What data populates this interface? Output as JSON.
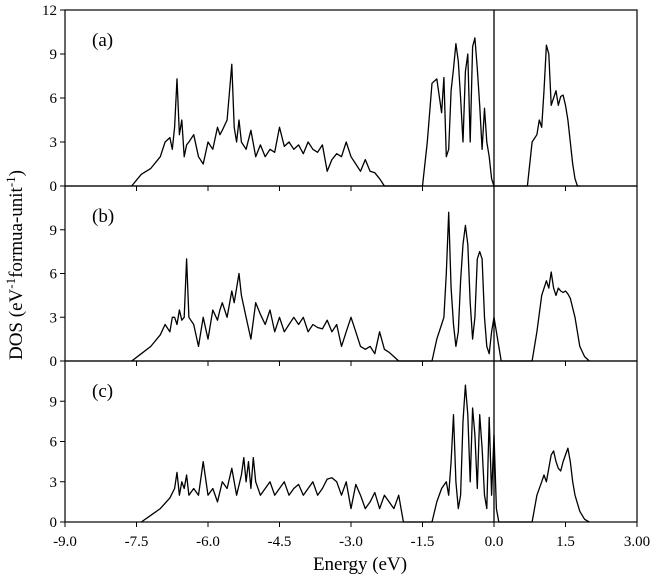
{
  "chart_data": {
    "type": "line",
    "figure": {
      "xlabel": "Energy (eV)",
      "ylabel_main": "DOS (eV",
      "ylabel_sup1": "-1",
      "ylabel_mid": "formua-unit",
      "ylabel_sup2": "-1",
      "ylabel_end": ")",
      "xlim": [
        -9.0,
        3.0
      ],
      "xticks": [
        -9.0,
        -7.5,
        -6.0,
        -4.5,
        -3.0,
        -1.5,
        0.0,
        1.5,
        3.0
      ],
      "xtick_labels": [
        "-9.0",
        "-7.5",
        "-6.0",
        "-4.5",
        "-3.0",
        "-1.5",
        "0.0",
        "1.5",
        "3.00"
      ],
      "fermi_level": 0.0,
      "grid": false,
      "legend": "none"
    },
    "panels": [
      {
        "label": "(a)",
        "ylim": [
          0,
          12
        ],
        "yticks": [
          0,
          3,
          6,
          9,
          12
        ],
        "ytick_labels": [
          "0",
          "3",
          "6",
          "9",
          "12"
        ],
        "x": [
          -7.6,
          -7.4,
          -7.2,
          -7.0,
          -6.9,
          -6.8,
          -6.75,
          -6.7,
          -6.65,
          -6.6,
          -6.55,
          -6.5,
          -6.45,
          -6.4,
          -6.3,
          -6.2,
          -6.1,
          -6.0,
          -5.9,
          -5.8,
          -5.75,
          -5.7,
          -5.6,
          -5.5,
          -5.45,
          -5.4,
          -5.35,
          -5.3,
          -5.2,
          -5.1,
          -5.0,
          -4.9,
          -4.8,
          -4.7,
          -4.6,
          -4.5,
          -4.4,
          -4.3,
          -4.2,
          -4.1,
          -4.0,
          -3.9,
          -3.8,
          -3.7,
          -3.6,
          -3.5,
          -3.4,
          -3.3,
          -3.2,
          -3.1,
          -3.0,
          -2.9,
          -2.8,
          -2.7,
          -2.6,
          -2.5,
          -2.4,
          -2.3,
          -1.5,
          -1.4,
          -1.3,
          -1.2,
          -1.1,
          -1.05,
          -1.0,
          -0.95,
          -0.9,
          -0.85,
          -0.8,
          -0.75,
          -0.7,
          -0.65,
          -0.6,
          -0.55,
          -0.5,
          -0.45,
          -0.4,
          -0.35,
          -0.3,
          -0.25,
          -0.2,
          -0.15,
          -0.1,
          -0.05,
          0.0,
          0.7,
          0.8,
          0.9,
          0.95,
          1.0,
          1.05,
          1.1,
          1.15,
          1.2,
          1.25,
          1.3,
          1.35,
          1.4,
          1.45,
          1.5,
          1.55,
          1.6,
          1.65,
          1.7,
          1.75,
          1.8
        ],
        "y": [
          0,
          0.8,
          1.2,
          2.0,
          3.0,
          3.3,
          2.5,
          4.0,
          7.3,
          3.5,
          4.5,
          2.0,
          2.8,
          3.0,
          3.5,
          2.0,
          1.5,
          3.0,
          2.5,
          4.0,
          3.5,
          3.8,
          4.5,
          8.3,
          4.0,
          3.0,
          4.5,
          3.0,
          2.5,
          3.8,
          2.0,
          2.8,
          2.0,
          2.5,
          2.3,
          4.0,
          2.7,
          3.0,
          2.5,
          2.8,
          2.2,
          3.0,
          2.5,
          2.3,
          2.8,
          1.0,
          1.8,
          2.2,
          2.0,
          3.0,
          2.0,
          1.5,
          1.0,
          1.8,
          1.0,
          0.9,
          0.5,
          0,
          0,
          3.0,
          7.0,
          7.3,
          5.0,
          7.4,
          2.0,
          2.5,
          6.5,
          8.0,
          9.7,
          8.5,
          6.0,
          3.0,
          7.8,
          9.0,
          3.0,
          9.5,
          10.1,
          8.0,
          5.5,
          2.5,
          5.3,
          3.0,
          2.0,
          0.5,
          0,
          0,
          3.0,
          3.5,
          4.5,
          4.0,
          6.5,
          9.6,
          9.0,
          5.5,
          6.0,
          6.5,
          5.5,
          6.1,
          6.2,
          5.5,
          4.5,
          3.0,
          1.5,
          0.5,
          0,
          0
        ]
      },
      {
        "label": "(b)",
        "ylim": [
          0,
          12
        ],
        "yticks": [
          0,
          3,
          6,
          9
        ],
        "ytick_labels": [
          "0",
          "3",
          "6",
          "9"
        ],
        "x": [
          -7.6,
          -7.4,
          -7.2,
          -7.0,
          -6.9,
          -6.8,
          -6.75,
          -6.7,
          -6.65,
          -6.6,
          -6.55,
          -6.5,
          -6.45,
          -6.4,
          -6.3,
          -6.2,
          -6.1,
          -6.0,
          -5.9,
          -5.8,
          -5.75,
          -5.7,
          -5.6,
          -5.5,
          -5.45,
          -5.4,
          -5.35,
          -5.3,
          -5.2,
          -5.1,
          -5.0,
          -4.9,
          -4.8,
          -4.7,
          -4.6,
          -4.5,
          -4.4,
          -4.3,
          -4.2,
          -4.1,
          -4.0,
          -3.9,
          -3.8,
          -3.7,
          -3.6,
          -3.5,
          -3.4,
          -3.3,
          -3.2,
          -3.1,
          -3.0,
          -2.9,
          -2.8,
          -2.7,
          -2.6,
          -2.5,
          -2.4,
          -2.3,
          -2.2,
          -2.1,
          -2.0,
          -1.9,
          -1.3,
          -1.2,
          -1.1,
          -1.05,
          -1.0,
          -0.95,
          -0.9,
          -0.85,
          -0.8,
          -0.75,
          -0.7,
          -0.65,
          -0.6,
          -0.55,
          -0.5,
          -0.45,
          -0.4,
          -0.35,
          -0.3,
          -0.25,
          -0.2,
          -0.15,
          -0.1,
          -0.05,
          0.0,
          0.05,
          0.1,
          0.15,
          0.8,
          0.9,
          1.0,
          1.1,
          1.15,
          1.2,
          1.25,
          1.3,
          1.35,
          1.4,
          1.45,
          1.5,
          1.55,
          1.6,
          1.7,
          1.8,
          1.9,
          2.0
        ],
        "y": [
          0,
          0.5,
          1.0,
          1.8,
          2.5,
          2.0,
          3.0,
          3.0,
          2.5,
          3.5,
          2.8,
          3.0,
          7.0,
          3.0,
          2.5,
          1.0,
          3.0,
          1.5,
          3.5,
          2.8,
          3.5,
          4.0,
          3.0,
          4.8,
          4.0,
          5.0,
          6.0,
          4.5,
          3.0,
          1.5,
          4.0,
          3.2,
          2.5,
          3.5,
          2.0,
          3.0,
          2.0,
          2.5,
          3.0,
          2.5,
          3.0,
          2.0,
          2.5,
          2.3,
          2.2,
          2.8,
          2.0,
          2.5,
          1.0,
          2.0,
          3.0,
          2.0,
          1.0,
          0.8,
          1.0,
          0.5,
          2.0,
          0.8,
          0.6,
          0.3,
          0,
          0,
          0,
          1.5,
          2.5,
          3.0,
          6.0,
          10.2,
          5.0,
          2.5,
          1.0,
          2.0,
          5.5,
          8.0,
          9.3,
          8.0,
          4.0,
          1.5,
          3.0,
          7.0,
          7.5,
          7.0,
          3.0,
          1.0,
          0.5,
          2.0,
          3.0,
          2.0,
          1.0,
          0,
          0,
          2.0,
          4.5,
          5.5,
          5.0,
          6.1,
          5.0,
          4.5,
          5.0,
          4.8,
          4.7,
          4.8,
          4.6,
          4.3,
          3.0,
          1.0,
          0.3,
          0
        ],
        "hidden_last_tick": true
      },
      {
        "label": "(c)",
        "ylim": [
          0,
          12
        ],
        "yticks": [
          0,
          3,
          6,
          9
        ],
        "ytick_labels": [
          "0",
          "3",
          "6",
          "9"
        ],
        "x": [
          -7.4,
          -7.2,
          -7.0,
          -6.8,
          -6.7,
          -6.65,
          -6.6,
          -6.55,
          -6.5,
          -6.45,
          -6.4,
          -6.3,
          -6.2,
          -6.1,
          -6.0,
          -5.9,
          -5.8,
          -5.7,
          -5.6,
          -5.5,
          -5.4,
          -5.3,
          -5.25,
          -5.2,
          -5.15,
          -5.1,
          -5.05,
          -5.0,
          -4.9,
          -4.8,
          -4.7,
          -4.6,
          -4.5,
          -4.4,
          -4.3,
          -4.2,
          -4.1,
          -4.0,
          -3.9,
          -3.8,
          -3.7,
          -3.6,
          -3.5,
          -3.4,
          -3.3,
          -3.2,
          -3.1,
          -3.0,
          -2.9,
          -2.8,
          -2.7,
          -2.6,
          -2.5,
          -2.4,
          -2.3,
          -2.2,
          -2.1,
          -2.0,
          -1.9,
          -1.3,
          -1.2,
          -1.1,
          -1.0,
          -0.95,
          -0.9,
          -0.85,
          -0.8,
          -0.75,
          -0.7,
          -0.65,
          -0.6,
          -0.55,
          -0.5,
          -0.45,
          -0.4,
          -0.35,
          -0.3,
          -0.25,
          -0.2,
          -0.15,
          -0.1,
          -0.05,
          0.0,
          0.05,
          0.1,
          0.8,
          0.9,
          1.0,
          1.05,
          1.1,
          1.15,
          1.2,
          1.25,
          1.3,
          1.35,
          1.4,
          1.45,
          1.5,
          1.55,
          1.6,
          1.65,
          1.7,
          1.8,
          1.9,
          2.0
        ],
        "y": [
          0,
          0.5,
          1.0,
          1.8,
          2.5,
          3.7,
          2.0,
          3.0,
          2.5,
          3.5,
          2.0,
          2.5,
          2.0,
          4.5,
          2.0,
          2.5,
          1.5,
          3.0,
          2.5,
          4.0,
          2.0,
          3.5,
          4.8,
          3.0,
          4.5,
          2.5,
          4.8,
          3.0,
          2.0,
          2.5,
          3.0,
          2.0,
          2.5,
          3.0,
          2.0,
          2.5,
          2.8,
          2.0,
          2.5,
          3.0,
          2.0,
          2.5,
          3.2,
          3.3,
          3.0,
          2.0,
          3.0,
          1.0,
          2.8,
          2.0,
          1.0,
          1.5,
          2.2,
          1.0,
          2.0,
          1.5,
          1.0,
          2.0,
          0,
          0,
          1.5,
          2.5,
          3.0,
          2.0,
          4.5,
          8.0,
          3.0,
          1.0,
          2.0,
          7.5,
          10.2,
          8.0,
          3.0,
          8.5,
          6.5,
          2.5,
          8.0,
          5.5,
          2.0,
          1.0,
          7.8,
          2.0,
          6.5,
          1.0,
          0,
          0,
          2.0,
          3.0,
          3.5,
          3.0,
          4.0,
          5.0,
          5.3,
          4.5,
          4.0,
          3.8,
          4.5,
          5.0,
          5.5,
          4.5,
          3.0,
          2.0,
          0.8,
          0.2,
          0
        ]
      }
    ]
  }
}
